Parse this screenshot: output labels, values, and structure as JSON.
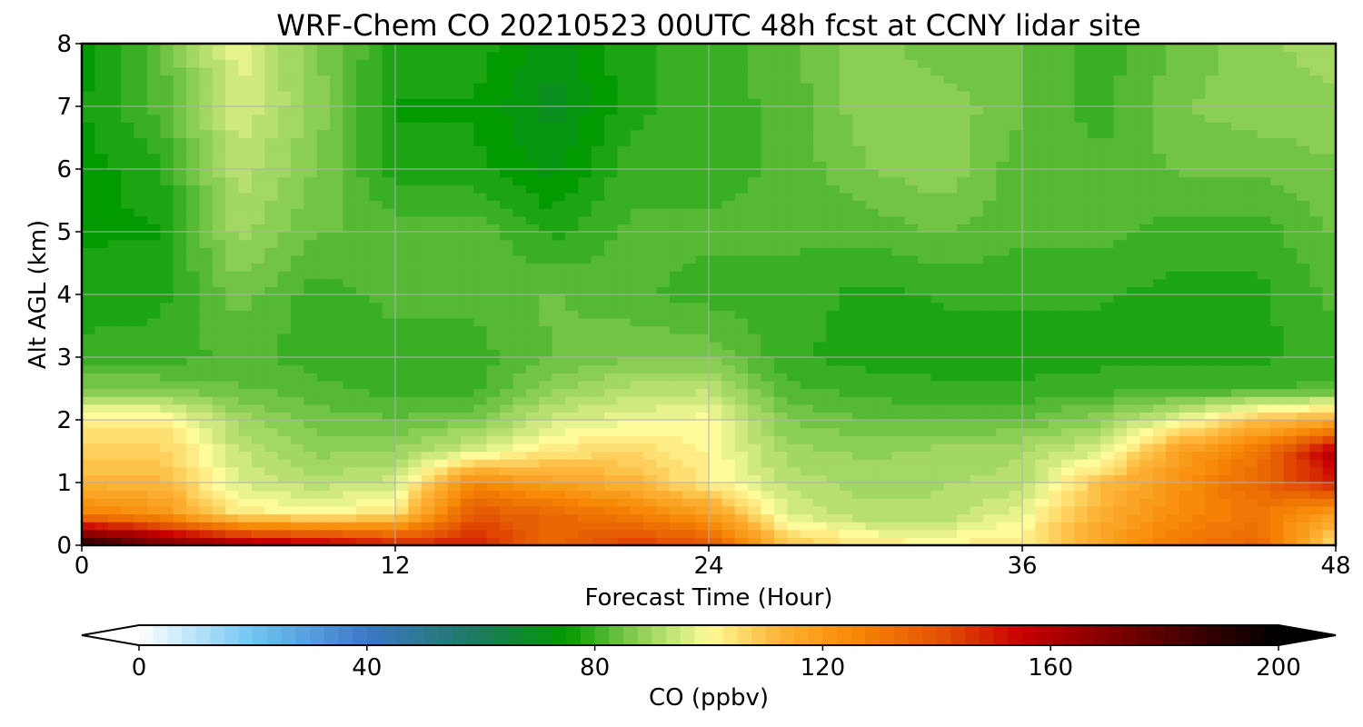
{
  "chart_data": {
    "type": "heatmap",
    "title": "WRF-Chem CO  20210523 00UTC 48h fcst at CCNY lidar site",
    "xlabel": "Forecast Time (Hour)",
    "ylabel": "Alt AGL (km)",
    "xlim": [
      0,
      48
    ],
    "ylim": [
      0,
      8
    ],
    "x_ticks": [
      0,
      12,
      24,
      36,
      48
    ],
    "y_ticks": [
      0,
      1,
      2,
      3,
      4,
      5,
      6,
      7,
      8
    ],
    "grid": true,
    "x": [
      0,
      3,
      6,
      9,
      12,
      15,
      18,
      21,
      24,
      27,
      30,
      33,
      36,
      39,
      42,
      45,
      48
    ],
    "y": [
      0,
      0.5,
      1,
      1.5,
      2,
      2.5,
      3,
      4,
      5,
      6,
      7,
      8
    ],
    "z": [
      [
        195,
        175,
        165,
        160,
        150,
        150,
        135,
        145,
        140,
        110,
        103,
        102,
        103,
        118,
        130,
        135,
        103
      ],
      [
        128,
        122,
        103,
        100,
        104,
        140,
        135,
        128,
        120,
        96,
        92,
        92,
        98,
        114,
        125,
        130,
        118
      ],
      [
        112,
        112,
        96,
        92,
        95,
        125,
        118,
        113,
        102,
        93,
        90,
        91,
        92,
        110,
        122,
        135,
        150
      ],
      [
        108,
        108,
        94,
        88,
        89,
        96,
        104,
        106,
        101,
        90,
        88,
        90,
        91,
        96,
        118,
        130,
        160
      ],
      [
        103,
        103,
        90,
        85,
        84,
        86,
        95,
        98,
        100,
        86,
        84,
        83,
        84,
        88,
        98,
        110,
        115
      ],
      [
        86,
        86,
        84,
        82,
        80,
        80,
        88,
        92,
        93,
        82,
        80,
        79,
        79,
        80,
        80,
        81,
        82
      ],
      [
        80,
        80,
        82,
        80,
        80,
        80,
        84,
        86,
        86,
        79,
        78,
        78,
        78,
        78,
        78,
        78,
        80
      ],
      [
        77,
        78,
        85,
        80,
        82,
        82,
        84,
        82,
        80,
        80,
        78,
        79,
        79,
        79,
        78,
        78,
        82
      ],
      [
        76,
        76,
        90,
        84,
        83,
        83,
        78,
        82,
        82,
        82,
        82,
        84,
        82,
        82,
        80,
        80,
        84
      ],
      [
        75,
        78,
        93,
        86,
        77,
        77,
        73,
        80,
        80,
        82,
        86,
        88,
        82,
        82,
        84,
        84,
        86
      ],
      [
        76,
        82,
        96,
        88,
        76,
        76,
        70,
        78,
        80,
        82,
        88,
        88,
        84,
        80,
        86,
        88,
        88
      ],
      [
        75,
        83,
        98,
        86,
        78,
        78,
        72,
        78,
        80,
        83,
        88,
        84,
        84,
        80,
        84,
        88,
        90
      ]
    ],
    "colorbar": {
      "label": "CO  (ppbv)",
      "min": 0,
      "max": 200,
      "ticks": [
        0,
        40,
        80,
        120,
        160,
        200
      ],
      "extend": "both",
      "colormap_stops": [
        {
          "v": 0,
          "c": "#ffffff"
        },
        {
          "v": 20,
          "c": "#6fc5f2"
        },
        {
          "v": 40,
          "c": "#3b78c6"
        },
        {
          "v": 60,
          "c": "#1c7a5a"
        },
        {
          "v": 75,
          "c": "#019a01"
        },
        {
          "v": 86,
          "c": "#7cc84b"
        },
        {
          "v": 100,
          "c": "#fefc9a"
        },
        {
          "v": 112,
          "c": "#fdb63a"
        },
        {
          "v": 125,
          "c": "#f78a06"
        },
        {
          "v": 140,
          "c": "#e35504"
        },
        {
          "v": 155,
          "c": "#c80000"
        },
        {
          "v": 175,
          "c": "#6a0000"
        },
        {
          "v": 200,
          "c": "#000000"
        }
      ]
    }
  }
}
